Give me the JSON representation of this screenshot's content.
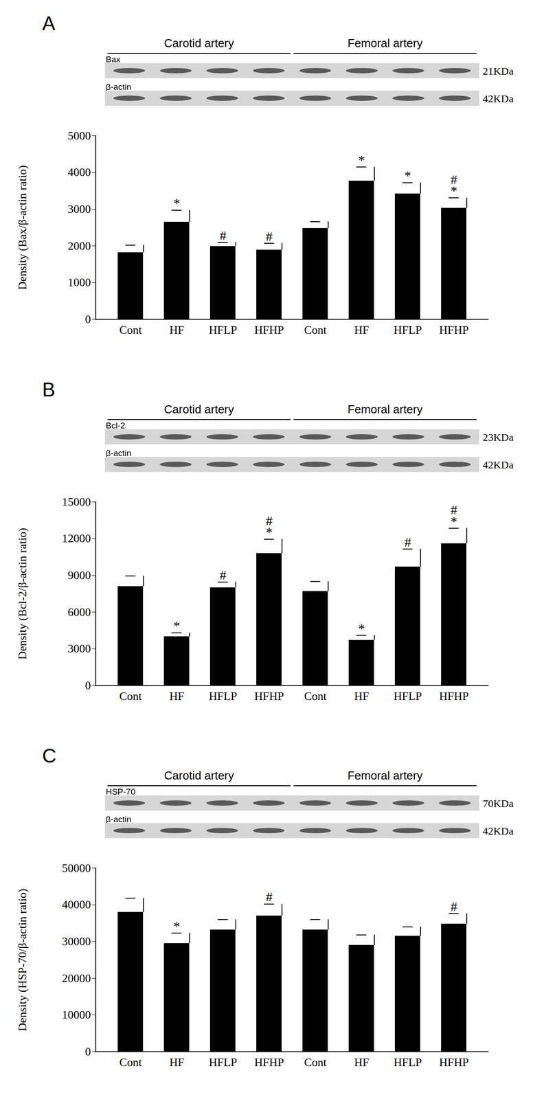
{
  "chart_data": [
    {
      "type": "bar",
      "title": "A",
      "blot": {
        "groups": [
          "Carotid artery",
          "Femoral artery"
        ],
        "bands": [
          {
            "label": "Bax",
            "size": "21KDa"
          },
          {
            "label": "β-actin",
            "size": "42KDa"
          }
        ]
      },
      "y_label": "Density (Bax/β-actin ratio)",
      "categories": [
        "Cont",
        "HF",
        "HFLP",
        "HFHP",
        "Cont",
        "HF",
        "HFLP",
        "HFHP"
      ],
      "values": [
        1820,
        2650,
        1990,
        1890,
        2480,
        3770,
        3420,
        3030
      ],
      "errors": [
        200,
        320,
        100,
        180,
        180,
        380,
        300,
        280
      ],
      "significance": [
        [],
        [
          "*"
        ],
        [
          "#"
        ],
        [
          "#"
        ],
        [],
        [
          "*"
        ],
        [
          "*"
        ],
        [
          "#",
          "*"
        ]
      ],
      "color": "#000000",
      "ylim": [
        0,
        5000
      ],
      "yticks": [
        0,
        1000,
        2000,
        3000,
        4000,
        5000
      ]
    },
    {
      "type": "bar",
      "title": "B",
      "blot": {
        "groups": [
          "Carotid artery",
          "Femoral artery"
        ],
        "bands": [
          {
            "label": "Bcl-2",
            "size": "23KDa"
          },
          {
            "label": "β-actin",
            "size": "42KDa"
          }
        ]
      },
      "y_label": "Density (Bcl-2/β-actin ratio)",
      "categories": [
        "Cont",
        "HF",
        "HFLP",
        "HFHP",
        "Cont",
        "HF",
        "HFLP",
        "HFHP"
      ],
      "values": [
        8100,
        4000,
        8000,
        10800,
        7700,
        3700,
        9700,
        11600
      ],
      "errors": [
        850,
        300,
        450,
        1150,
        800,
        400,
        1450,
        1250
      ],
      "significance": [
        [],
        [
          "*"
        ],
        [
          "#"
        ],
        [
          "#",
          "*"
        ],
        [],
        [
          "*"
        ],
        [
          "#"
        ],
        [
          "#",
          "*"
        ]
      ],
      "color": "#000000",
      "ylim": [
        0,
        15000
      ],
      "yticks": [
        0,
        3000,
        6000,
        9000,
        12000,
        15000
      ]
    },
    {
      "type": "bar",
      "title": "C",
      "blot": {
        "groups": [
          "Carotid artery",
          "Femoral artery"
        ],
        "bands": [
          {
            "label": "HSP-70",
            "size": "70KDa"
          },
          {
            "label": "β-actin",
            "size": "42KDa"
          }
        ]
      },
      "y_label": "Density (HSP-70/β-actin ratio)",
      "categories": [
        "Cont",
        "HF",
        "HFLP",
        "HFHP",
        "Cont",
        "HF",
        "HFLP",
        "HFHP"
      ],
      "values": [
        38000,
        29500,
        33200,
        37000,
        33200,
        29000,
        31500,
        34800
      ],
      "errors": [
        3800,
        2800,
        2800,
        3200,
        2800,
        2800,
        2500,
        2800
      ],
      "significance": [
        [],
        [
          "*"
        ],
        [],
        [
          "#"
        ],
        [],
        [],
        [],
        [
          "#"
        ]
      ],
      "color": "#000000",
      "ylim": [
        0,
        50000
      ],
      "yticks": [
        0,
        10000,
        20000,
        30000,
        40000,
        50000
      ]
    }
  ]
}
